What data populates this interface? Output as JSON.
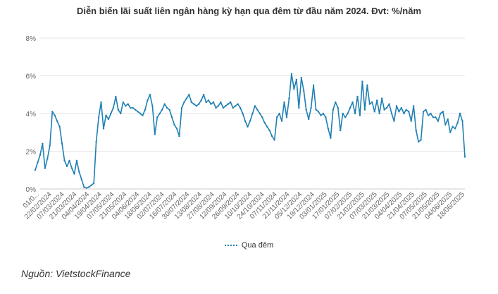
{
  "chart_data": {
    "type": "line",
    "title": "Diễn biến lãi suất liên ngân hàng kỳ hạn qua đêm từ đầu năm 2024. Đvt: %/năm",
    "xlabel": "",
    "ylabel": "",
    "ylim": [
      0,
      8
    ],
    "y_ticks": [
      "0%",
      "2%",
      "4%",
      "6%",
      "8%"
    ],
    "y_tick_values": [
      0,
      2,
      4,
      6,
      8
    ],
    "grid": true,
    "legend_position": "bottom",
    "x_tick_labels": [
      "01/0...",
      "22/02/2024",
      "07/03/2024",
      "21/03/2024",
      "04/04/2024",
      "19/04/2024",
      "07/05/2024",
      "21/05/2024",
      "04/06/2024",
      "18/06/2024",
      "02/07/2024",
      "16/07/2024",
      "30/07/2024",
      "13/08/2024",
      "27/08/2024",
      "12/09/2024",
      "26/09/2024",
      "10/10/2024",
      "24/10/2024",
      "07/11/2024",
      "21/11/2024",
      "05/12/2024",
      "19/12/2024",
      "03/01/2025",
      "17/01/2025",
      "07/02/2025",
      "21/02/2025",
      "07/03/2025",
      "21/03/2025",
      "04/04/2025",
      "21/04/2025",
      "07/05/2025",
      "21/05/2025",
      "04/06/2025",
      "18/06/2025"
    ],
    "series": [
      {
        "name": "Qua đêm",
        "color": "#1f7fb3",
        "values": [
          1.0,
          1.4,
          1.8,
          2.4,
          1.1,
          1.6,
          2.3,
          4.1,
          3.9,
          3.6,
          3.3,
          2.4,
          1.5,
          1.2,
          1.5,
          1.1,
          0.8,
          1.5,
          0.9,
          0.5,
          0.1,
          0.05,
          0.1,
          0.2,
          0.3,
          2.5,
          3.8,
          4.6,
          3.2,
          3.9,
          3.7,
          4.0,
          4.3,
          4.9,
          4.2,
          4.0,
          4.6,
          4.4,
          4.5,
          4.3,
          4.3,
          4.2,
          4.1,
          4.0,
          3.9,
          4.2,
          4.7,
          5.0,
          4.4,
          2.9,
          3.8,
          4.0,
          4.2,
          4.5,
          4.3,
          4.2,
          3.8,
          3.4,
          3.2,
          2.8,
          4.3,
          4.6,
          4.8,
          5.0,
          4.6,
          4.5,
          4.4,
          4.5,
          4.7,
          5.0,
          4.6,
          4.7,
          4.5,
          4.6,
          4.3,
          4.4,
          4.6,
          4.3,
          4.4,
          4.5,
          4.6,
          4.3,
          4.4,
          4.5,
          4.3,
          4.0,
          3.6,
          3.3,
          3.6,
          4.0,
          4.4,
          4.2,
          4.0,
          3.8,
          3.5,
          3.3,
          3.1,
          2.8,
          2.6,
          3.8,
          4.0,
          3.6,
          4.6,
          3.8,
          4.8,
          6.1,
          5.3,
          5.8,
          4.3,
          5.9,
          5.2,
          4.2,
          3.7,
          4.3,
          5.5,
          4.2,
          4.1,
          3.9,
          4.0,
          3.8,
          3.2,
          2.7,
          4.2,
          4.6,
          4.3,
          3.1,
          4.0,
          3.8,
          4.0,
          4.3,
          4.6,
          4.0,
          4.9,
          3.9,
          5.7,
          4.2,
          5.5,
          4.5,
          4.6,
          4.1,
          4.7,
          4.0,
          4.8,
          4.2,
          4.3,
          4.5,
          4.0,
          3.6,
          4.4,
          4.1,
          4.3,
          4.0,
          4.2,
          4.1,
          3.6,
          4.4,
          3.1,
          2.5,
          2.6,
          4.1,
          4.2,
          3.9,
          4.0,
          3.8,
          3.8,
          3.6,
          4.0,
          4.1,
          3.4,
          3.7,
          3.0,
          3.3,
          3.2,
          3.5,
          4.0,
          3.6,
          1.7
        ]
      }
    ]
  },
  "source_text": "Nguồn: VietstockFinance"
}
